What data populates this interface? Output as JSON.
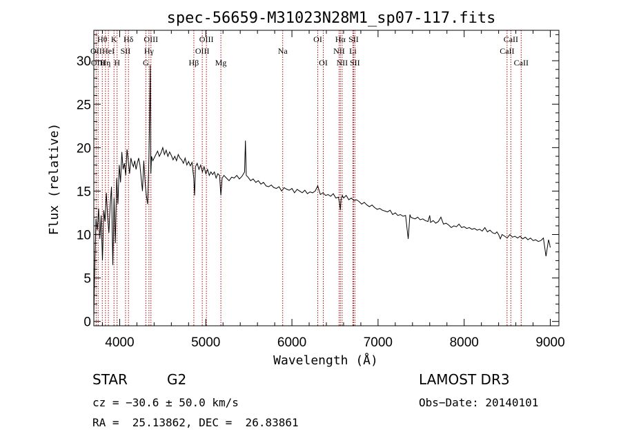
{
  "chart_data": {
    "type": "line",
    "title": "spec-56659-M31023N28M1_sp07-117.fits",
    "xlabel": "Wavelength (Å)",
    "ylabel": "Flux (relative)",
    "xlim": [
      3700,
      9100
    ],
    "ylim": [
      -0.5,
      33.5
    ],
    "xticks": [
      4000,
      5000,
      6000,
      7000,
      8000,
      9000
    ],
    "yticks": [
      0,
      5,
      10,
      15,
      20,
      25,
      30
    ],
    "line_color": "#000000",
    "marker_color": "#aa0000",
    "series": [
      {
        "name": "flux",
        "x": [
          3700,
          3710,
          3725,
          3740,
          3755,
          3770,
          3785,
          3800,
          3815,
          3830,
          3845,
          3860,
          3875,
          3890,
          3905,
          3920,
          3935,
          3950,
          3965,
          3980,
          3995,
          4010,
          4025,
          4040,
          4055,
          4070,
          4085,
          4100,
          4115,
          4130,
          4145,
          4160,
          4175,
          4190,
          4205,
          4220,
          4235,
          4250,
          4265,
          4280,
          4295,
          4310,
          4325,
          4340,
          4350,
          4355,
          4362,
          4370,
          4385,
          4400,
          4420,
          4440,
          4460,
          4480,
          4500,
          4520,
          4540,
          4560,
          4580,
          4600,
          4620,
          4640,
          4660,
          4680,
          4700,
          4720,
          4740,
          4760,
          4780,
          4800,
          4820,
          4840,
          4860,
          4870,
          4880,
          4900,
          4920,
          4940,
          4960,
          4980,
          5000,
          5020,
          5040,
          5060,
          5080,
          5100,
          5120,
          5140,
          5160,
          5175,
          5190,
          5210,
          5240,
          5270,
          5300,
          5330,
          5360,
          5390,
          5420,
          5450,
          5460,
          5470,
          5490,
          5520,
          5550,
          5580,
          5610,
          5640,
          5670,
          5700,
          5730,
          5760,
          5790,
          5820,
          5850,
          5880,
          5910,
          5940,
          5970,
          6000,
          6030,
          6060,
          6090,
          6120,
          6150,
          6180,
          6210,
          6240,
          6270,
          6300,
          6300,
          6330,
          6360,
          6390,
          6420,
          6450,
          6480,
          6510,
          6540,
          6555,
          6563,
          6570,
          6585,
          6600,
          6630,
          6660,
          6690,
          6720,
          6750,
          6780,
          6810,
          6840,
          6870,
          6900,
          6930,
          6960,
          6990,
          7020,
          7050,
          7080,
          7110,
          7140,
          7170,
          7200,
          7230,
          7260,
          7290,
          7320,
          7350,
          7370,
          7380,
          7400,
          7430,
          7460,
          7490,
          7520,
          7550,
          7580,
          7600,
          7610,
          7640,
          7670,
          7700,
          7730,
          7760,
          7790,
          7820,
          7850,
          7880,
          7910,
          7940,
          7970,
          8000,
          8030,
          8060,
          8090,
          8120,
          8150,
          8180,
          8210,
          8240,
          8270,
          8300,
          8330,
          8360,
          8380,
          8400,
          8420,
          8440,
          8470,
          8500,
          8530,
          8560,
          8590,
          8620,
          8650,
          8680,
          8710,
          8740,
          8770,
          8800,
          8830,
          8860,
          8890,
          8920,
          8950,
          8980,
          8990,
          9000
        ],
        "y": [
          0.5,
          6.0,
          11.8,
          10.5,
          13.0,
          9.5,
          12.2,
          7.0,
          12.8,
          11.5,
          14.8,
          12.0,
          10.2,
          13.5,
          15.5,
          6.5,
          14.2,
          9.0,
          16.5,
          13.5,
          18.0,
          16.0,
          19.5,
          17.5,
          18.2,
          16.8,
          19.8,
          18.5,
          17.0,
          18.8,
          18.2,
          17.8,
          18.5,
          17.5,
          18.2,
          18.8,
          18.0,
          16.5,
          15.0,
          18.5,
          16.0,
          14.5,
          13.5,
          19.0,
          25.0,
          29.5,
          17.0,
          19.0,
          18.5,
          18.8,
          19.2,
          19.6,
          19.0,
          19.4,
          20.0,
          19.2,
          19.7,
          19.0,
          19.5,
          19.1,
          18.6,
          19.0,
          18.5,
          19.2,
          18.8,
          18.6,
          18.2,
          18.8,
          18.0,
          18.4,
          17.9,
          18.3,
          16.5,
          14.5,
          17.8,
          18.2,
          17.5,
          18.0,
          17.2,
          17.8,
          17.0,
          17.5,
          16.8,
          17.2,
          16.9,
          17.2,
          16.5,
          17.0,
          16.8,
          14.5,
          16.5,
          16.8,
          16.5,
          16.2,
          16.6,
          16.5,
          16.8,
          16.4,
          16.7,
          17.2,
          20.8,
          16.8,
          16.6,
          16.2,
          16.4,
          16.0,
          16.2,
          15.8,
          16.0,
          15.6,
          15.5,
          15.7,
          15.4,
          15.3,
          15.5,
          15.0,
          15.4,
          15.2,
          15.1,
          15.3,
          14.8,
          15.2,
          15.0,
          14.8,
          15.1,
          14.7,
          14.9,
          14.8,
          15.0,
          15.6,
          15.6,
          14.6,
          14.8,
          14.5,
          14.6,
          14.4,
          14.7,
          14.2,
          14.3,
          13.5,
          12.8,
          14.0,
          14.5,
          14.2,
          14.5,
          14.0,
          14.2,
          13.9,
          14.0,
          13.8,
          13.5,
          13.7,
          13.4,
          13.2,
          13.4,
          13.1,
          12.9,
          13.0,
          12.8,
          12.7,
          12.6,
          12.8,
          12.3,
          12.5,
          12.2,
          12.3,
          12.1,
          12.2,
          9.5,
          12.3,
          12.0,
          11.9,
          11.8,
          12.0,
          11.7,
          11.8,
          11.6,
          11.5,
          12.2,
          11.4,
          11.6,
          11.3,
          11.5,
          12.0,
          11.2,
          11.3,
          11.1,
          10.8,
          11.0,
          10.9,
          11.2,
          10.8,
          10.9,
          10.7,
          10.8,
          10.6,
          10.7,
          10.5,
          10.6,
          10.4,
          10.8,
          10.3,
          10.5,
          10.2,
          10.1,
          10.3,
          10.0,
          9.5,
          10.0,
          9.8,
          9.6,
          10.0,
          9.7,
          9.8,
          9.6,
          9.8,
          9.5,
          9.7,
          9.4,
          9.6,
          9.3,
          9.4,
          9.2,
          9.3,
          9.6,
          7.5,
          9.4,
          9.0,
          8.5
        ]
      }
    ],
    "lines": [
      {
        "wave": 3727,
        "label": "OII",
        "row": 1
      },
      {
        "wave": 3750,
        "label": "OIII",
        "row": 2
      },
      {
        "wave": 3798,
        "label": "Hθ",
        "row": 0
      },
      {
        "wave": 3835,
        "label": "Hη",
        "row": 2
      },
      {
        "wave": 3869,
        "label": "HeI",
        "row": 1
      },
      {
        "wave": 3934,
        "label": "K",
        "row": 0
      },
      {
        "wave": 3970,
        "label": "H",
        "row": 2
      },
      {
        "wave": 4068,
        "label": "SII",
        "row": 1
      },
      {
        "wave": 4102,
        "label": "Hδ",
        "row": 0
      },
      {
        "wave": 4304,
        "label": "G",
        "row": 2
      },
      {
        "wave": 4340,
        "label": "Hγ",
        "row": 1
      },
      {
        "wave": 4363,
        "label": "OIII",
        "row": 0
      },
      {
        "wave": 4861,
        "label": "Hβ",
        "row": 2
      },
      {
        "wave": 4959,
        "label": "OIII",
        "row": 1
      },
      {
        "wave": 5007,
        "label": "OIII",
        "row": 0
      },
      {
        "wave": 5175,
        "label": "Mg",
        "row": 2
      },
      {
        "wave": 5893,
        "label": "Na",
        "row": 1
      },
      {
        "wave": 6300,
        "label": "OI",
        "row": 0
      },
      {
        "wave": 6364,
        "label": "OI",
        "row": 2
      },
      {
        "wave": 6548,
        "label": "NII",
        "row": 1
      },
      {
        "wave": 6563,
        "label": "Hα",
        "row": 0
      },
      {
        "wave": 6583,
        "label": "NII",
        "row": 2
      },
      {
        "wave": 6708,
        "label": "Li",
        "row": 1
      },
      {
        "wave": 6716,
        "label": "SII",
        "row": 0
      },
      {
        "wave": 6731,
        "label": "SII",
        "row": 2
      },
      {
        "wave": 8498,
        "label": "CaII",
        "row": 1
      },
      {
        "wave": 8542,
        "label": "CaII",
        "row": 0
      },
      {
        "wave": 8662,
        "label": "CaII",
        "row": 2
      }
    ]
  },
  "info": {
    "class": "STAR",
    "subclass": "G2",
    "survey": "LAMOST DR3",
    "cz": "cz = −30.6 ± 50.0 km/s",
    "obs_date": "Obs−Date: 20140101",
    "radec": "RA =  25.13862, DEC =  26.83861"
  }
}
